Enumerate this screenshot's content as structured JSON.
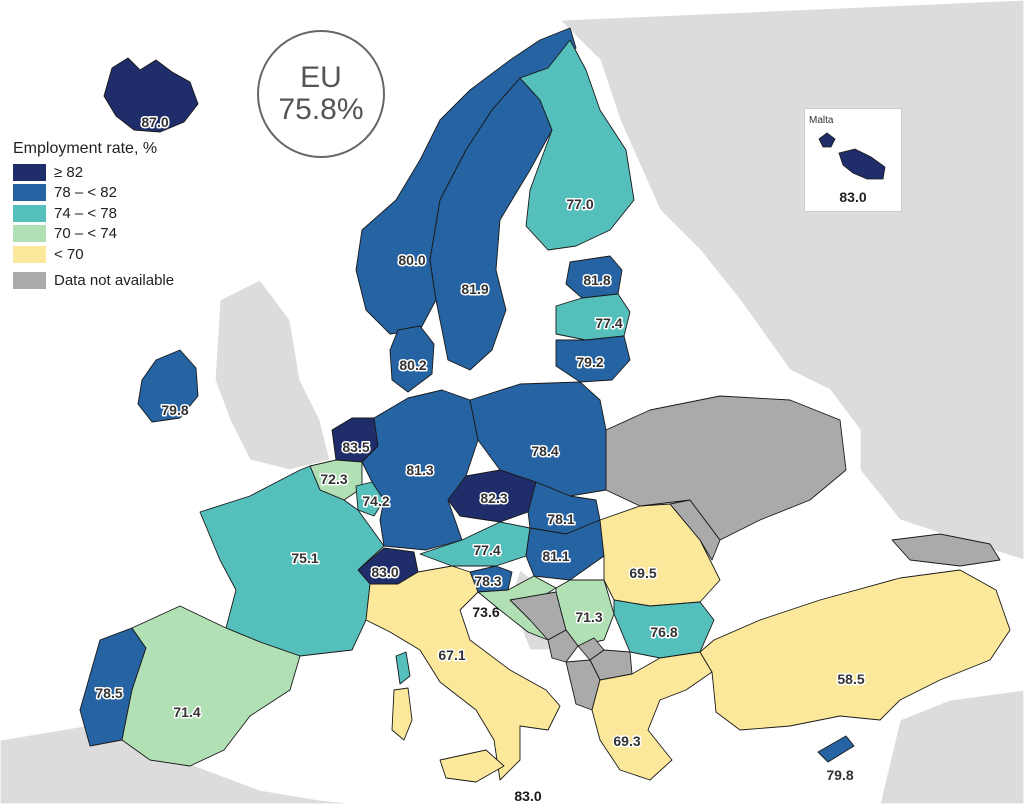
{
  "legend": {
    "title": "Employment rate, %",
    "items": [
      {
        "label": "≥ 82",
        "color": "#1f2d6b"
      },
      {
        "label": "78 – < 82",
        "color": "#2563a3"
      },
      {
        "label": "74 – < 78",
        "color": "#55bfbc"
      },
      {
        "label": "70 – < 74",
        "color": "#b2e0b5"
      },
      {
        "label": "< 70",
        "color": "#fbe89a"
      },
      {
        "label": "Data not available",
        "color": "#aaaaaa"
      }
    ]
  },
  "eu": {
    "label": "EU",
    "value": "75.8%"
  },
  "inset": {
    "title": "Malta",
    "value": "83.0"
  },
  "regions": [
    {
      "name": "Iceland",
      "value": "87.0",
      "cls": 0
    },
    {
      "name": "Norway",
      "value": "80.0",
      "cls": 1
    },
    {
      "name": "Sweden",
      "value": "81.9",
      "cls": 1
    },
    {
      "name": "Finland",
      "value": "77.0",
      "cls": 2
    },
    {
      "name": "Estonia",
      "value": "81.8",
      "cls": 1
    },
    {
      "name": "Latvia",
      "value": "77.4",
      "cls": 2
    },
    {
      "name": "Lithuania",
      "value": "79.2",
      "cls": 1
    },
    {
      "name": "Denmark",
      "value": "80.2",
      "cls": 1
    },
    {
      "name": "Ireland",
      "value": "79.8",
      "cls": 1
    },
    {
      "name": "Netherlands",
      "value": "83.5",
      "cls": 0
    },
    {
      "name": "Belgium",
      "value": "72.3",
      "cls": 3
    },
    {
      "name": "Luxembourg",
      "value": "74.2",
      "cls": 2
    },
    {
      "name": "Germany",
      "value": "81.3",
      "cls": 1
    },
    {
      "name": "Poland",
      "value": "78.4",
      "cls": 1
    },
    {
      "name": "Czechia",
      "value": "82.3",
      "cls": 0
    },
    {
      "name": "Slovakia",
      "value": "78.1",
      "cls": 1
    },
    {
      "name": "Austria",
      "value": "77.4",
      "cls": 2
    },
    {
      "name": "Hungary",
      "value": "81.1",
      "cls": 1
    },
    {
      "name": "Switzerland",
      "value": "83.0",
      "cls": 0
    },
    {
      "name": "France",
      "value": "75.1",
      "cls": 2
    },
    {
      "name": "Slovenia",
      "value": "78.3",
      "cls": 1
    },
    {
      "name": "Croatia",
      "value": "73.6",
      "cls": 3
    },
    {
      "name": "Serbia",
      "value": "71.3",
      "cls": 3
    },
    {
      "name": "Romania",
      "value": "69.5",
      "cls": 4
    },
    {
      "name": "Bulgaria",
      "value": "76.8",
      "cls": 2
    },
    {
      "name": "Italy",
      "value": "67.1",
      "cls": 4
    },
    {
      "name": "Greece",
      "value": "69.3",
      "cls": 4
    },
    {
      "name": "Turkey",
      "value": "58.5",
      "cls": 4
    },
    {
      "name": "Cyprus",
      "value": "79.8",
      "cls": 1
    },
    {
      "name": "Portugal",
      "value": "78.5",
      "cls": 1
    },
    {
      "name": "Spain",
      "value": "71.4",
      "cls": 3
    },
    {
      "name": "Malta",
      "value": "83.0",
      "cls": 0
    },
    {
      "name": "Ukraine",
      "value": "",
      "cls": 5
    },
    {
      "name": "Moldova",
      "value": "",
      "cls": 5
    },
    {
      "name": "Bosnia and Herzegovina",
      "value": "",
      "cls": 5
    },
    {
      "name": "Montenegro",
      "value": "",
      "cls": 5
    },
    {
      "name": "North Macedonia",
      "value": "",
      "cls": 5
    },
    {
      "name": "Albania",
      "value": "",
      "cls": 5
    },
    {
      "name": "Kosovo",
      "value": "",
      "cls": 5
    },
    {
      "name": "Georgia",
      "value": "",
      "cls": 5
    }
  ]
}
